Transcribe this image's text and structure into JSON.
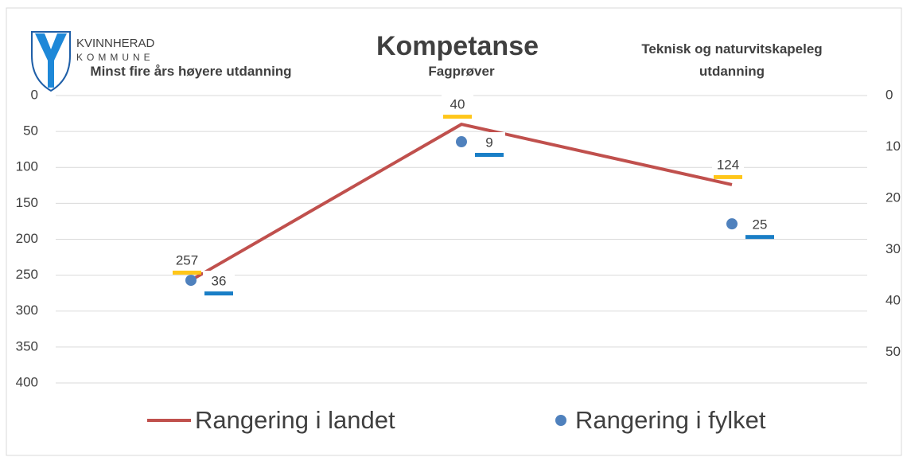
{
  "logo": {
    "name": "KVINNHERAD",
    "subtitle": "KOMMUNE"
  },
  "chart_data": {
    "type": "line",
    "title": "Kompetanse",
    "categories": [
      "Minst fire års høyere utdanning",
      "Fagprøver",
      "Teknisk og naturvitskapeleg utdanning"
    ],
    "series": [
      {
        "name": "Rangering i landet",
        "color": "#c0504d",
        "values": [
          257,
          40,
          124
        ],
        "type": "line"
      },
      {
        "name": "Rangering i fylket",
        "color": "#4f81bd",
        "values": [
          36,
          9,
          25
        ],
        "type": "scatter",
        "axis": "y2"
      }
    ],
    "ylim": [
      0,
      400
    ],
    "yticks": [
      0,
      50,
      100,
      150,
      200,
      250,
      300,
      350,
      400
    ],
    "y2lim": [
      0,
      56
    ],
    "y2ticks": [
      0,
      10,
      20,
      30,
      40,
      50
    ],
    "y_reversed": true,
    "grid": true,
    "legend": "bottom"
  }
}
